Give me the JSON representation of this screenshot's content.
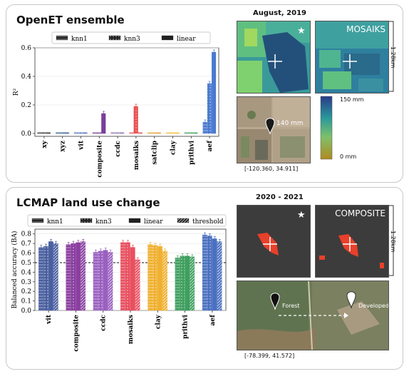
{
  "top": {
    "title": "OpenET ensemble",
    "map_title": "August, 2019",
    "star": "★",
    "mosaiks_label": "MOSAIKS",
    "scale_label": "1.28km",
    "pin_value": "140 mm",
    "colorbar_top": "150 mm",
    "colorbar_bottom": "0 mm",
    "coords": "[-120.360, 34.911]"
  },
  "bottom": {
    "title": "LCMAP land use change",
    "map_title": "2020 - 2021",
    "star": "★",
    "composite_label": "COMPOSITE",
    "scale_label": "1.28km",
    "forest_label": "Forest",
    "developed_label": "Developed",
    "coords": "[-78.399, 41.572]"
  },
  "chart_data": [
    {
      "type": "bar",
      "ylabel": "R²",
      "ylim": [
        -0.02,
        0.6
      ],
      "yticks": [
        "0.0",
        "0.2",
        "0.4",
        "0.6"
      ],
      "categories": [
        "xy",
        "xyz",
        "vit",
        "composite",
        "ccdc",
        "mosaiks",
        "satclip",
        "clay",
        "prithvi",
        "aef"
      ],
      "series": [
        {
          "name": "knn1",
          "values": [
            0.0,
            0.0,
            0.0,
            0.005,
            0.0,
            0.0,
            0.0,
            0.0,
            0.0,
            0.08
          ]
        },
        {
          "name": "knn3",
          "values": [
            0.0,
            0.0,
            0.0,
            0.0,
            0.0,
            0.19,
            0.0,
            0.0,
            0.0,
            0.35
          ]
        },
        {
          "name": "linear",
          "values": [
            0.0,
            0.0,
            0.0,
            0.14,
            0.0,
            0.0,
            0.0,
            0.0,
            0.0,
            0.57
          ]
        }
      ],
      "colors": [
        "#2f2f2f",
        "#2f5f8f",
        "#4f6fbf",
        "#7a3f9a",
        "#8a6fb0",
        "#e85050",
        "#e8a030",
        "#f0c030",
        "#3fa05f",
        "#4a7ad0"
      ],
      "grid": true,
      "legend": "top"
    },
    {
      "type": "bar",
      "ylabel": "Balanced accuracy (BA)",
      "ylim": [
        0.0,
        0.85
      ],
      "yticks": [
        "0.0",
        "0.1",
        "0.2",
        "0.3",
        "0.4",
        "0.5",
        "0.6",
        "0.7",
        "0.8"
      ],
      "categories": [
        "vit",
        "composite",
        "ccdc",
        "mosaiks",
        "clay",
        "prithvi",
        "aef"
      ],
      "series": [
        {
          "name": "knn1",
          "values": [
            0.66,
            0.69,
            0.61,
            0.71,
            0.69,
            0.55,
            0.79
          ]
        },
        {
          "name": "knn3",
          "values": [
            0.67,
            0.7,
            0.62,
            0.71,
            0.68,
            0.57,
            0.78
          ]
        },
        {
          "name": "linear",
          "values": [
            0.72,
            0.71,
            0.63,
            0.66,
            0.67,
            0.57,
            0.75
          ]
        },
        {
          "name": "threshold",
          "values": [
            0.7,
            0.72,
            0.61,
            0.53,
            0.62,
            0.56,
            0.72
          ]
        }
      ],
      "colors": [
        "#4a5fa0",
        "#8a3fa0",
        "#9a60c0",
        "#e85060",
        "#f0b030",
        "#3f9f5f",
        "#4a70c0"
      ],
      "baseline": 0.5,
      "grid": true,
      "legend": "top"
    }
  ]
}
